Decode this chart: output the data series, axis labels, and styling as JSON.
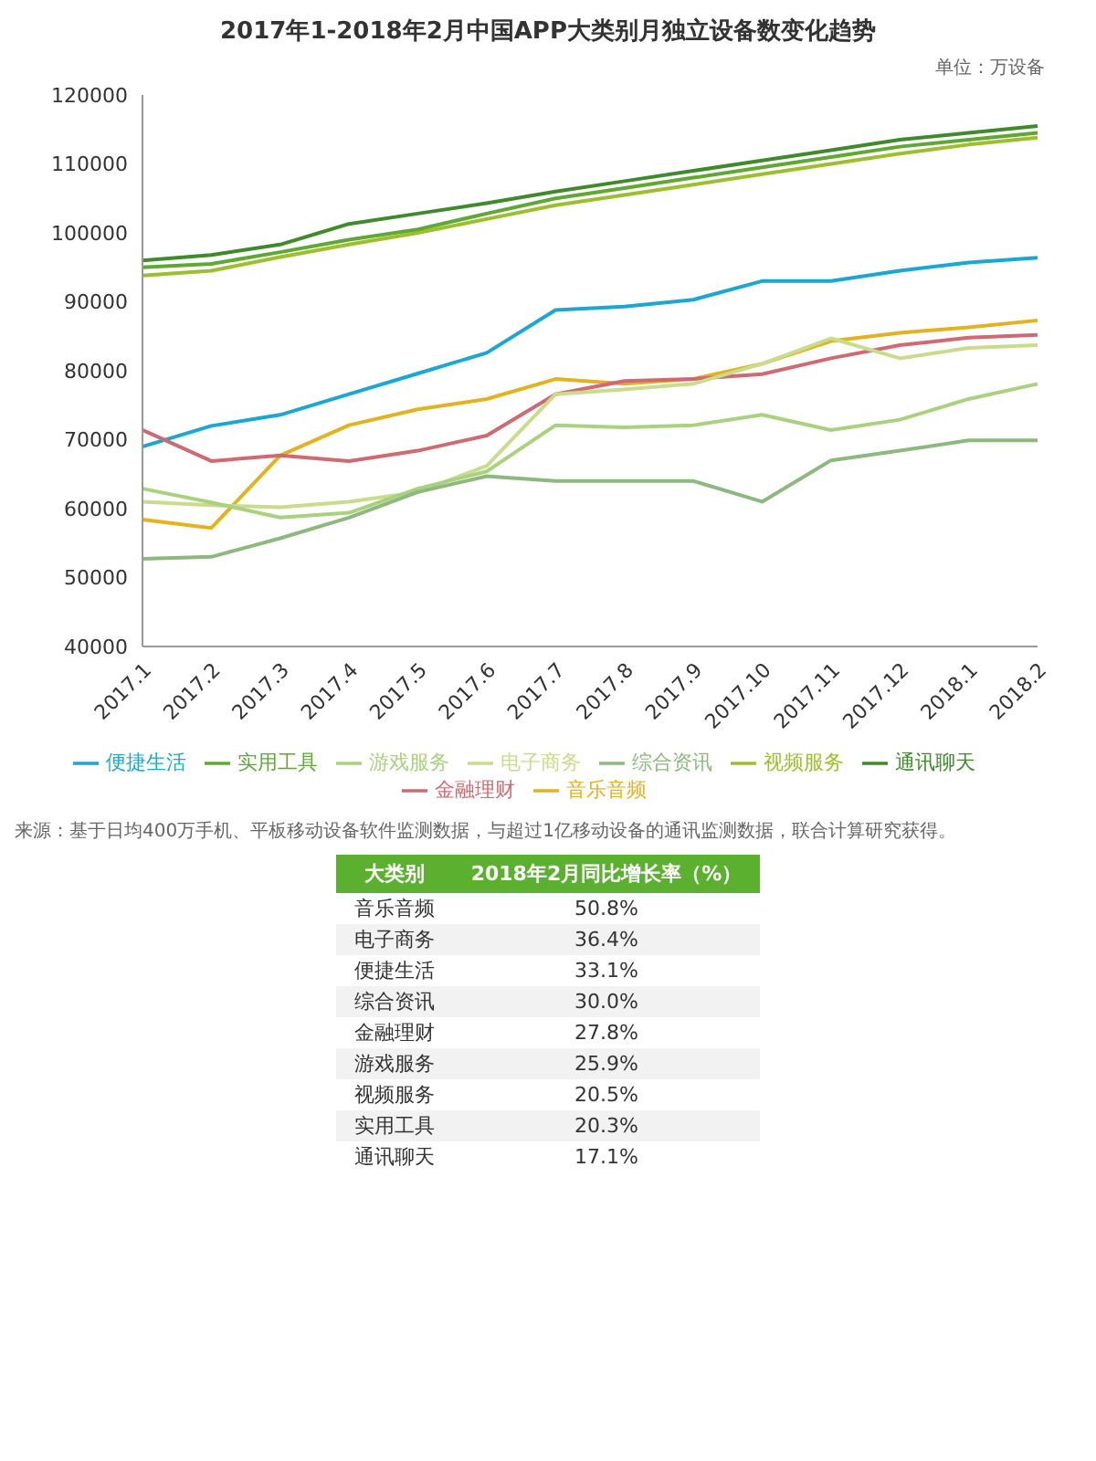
{
  "chart_data": [
    {
      "type": "line",
      "title": "2017年1-2018年2月中国APP大类别月独立设备数变化趋势",
      "annotations": [
        "单位：万设备",
        "来源：基于日均400万手机、平板移动设备软件监测数据，与超过1亿移动设备的通讯监测数据，联合计算研究获得。"
      ],
      "categories": [
        "2017.1",
        "2017.2",
        "2017.3",
        "2017.4",
        "2017.5",
        "2017.6",
        "2017.7",
        "2017.8",
        "2017.9",
        "2017.10",
        "2017.11",
        "2017.12",
        "2018.1",
        "2018.2"
      ],
      "series": [
        {
          "name": "视频服务",
          "color": "#9cbf2e",
          "values": [
            93800,
            94500,
            96500,
            98300,
            100000,
            102000,
            104000,
            105500,
            107000,
            108500,
            110000,
            111500,
            112800,
            113800
          ]
        },
        {
          "name": "实用工具",
          "color": "#5fa832",
          "values": [
            95000,
            95500,
            97200,
            99000,
            100500,
            102800,
            105000,
            106500,
            108000,
            109500,
            111000,
            112500,
            113500,
            114500
          ]
        },
        {
          "name": "通讯聊天",
          "color": "#3f8a2a",
          "values": [
            96000,
            96800,
            98300,
            101300,
            102800,
            104300,
            106000,
            107500,
            109000,
            110500,
            112000,
            113500,
            114500,
            115500
          ]
        },
        {
          "name": "便捷生活",
          "color": "#1aa7d2",
          "values": [
            69000,
            72000,
            73600,
            76600,
            79600,
            82600,
            88800,
            89300,
            90300,
            93000,
            93000,
            94500,
            95700,
            96400
          ]
        },
        {
          "name": "音乐音频",
          "color": "#e2b31f",
          "values": [
            58400,
            57200,
            67700,
            72100,
            74400,
            75900,
            78800,
            78100,
            78800,
            81000,
            84300,
            85500,
            86300,
            87300
          ]
        },
        {
          "name": "金融理财",
          "color": "#cf6a72",
          "values": [
            71400,
            66900,
            67700,
            66900,
            68400,
            70600,
            76600,
            78500,
            78800,
            79500,
            81800,
            83700,
            84800,
            85200
          ]
        },
        {
          "name": "电子商务",
          "color": "#c8dc8c",
          "values": [
            61000,
            60500,
            60200,
            61000,
            62400,
            66200,
            76600,
            77300,
            78100,
            81000,
            84700,
            81800,
            83300,
            83700
          ]
        },
        {
          "name": "游戏服务",
          "color": "#a9d17e",
          "values": [
            62900,
            60900,
            58700,
            59400,
            62900,
            65400,
            72100,
            71800,
            72100,
            73600,
            71400,
            72900,
            75900,
            78100
          ]
        },
        {
          "name": "综合资讯",
          "color": "#8db87e",
          "values": [
            52700,
            53000,
            55700,
            58700,
            62400,
            64700,
            64000,
            64000,
            64000,
            61000,
            67000,
            68400,
            69900,
            69900
          ]
        }
      ],
      "ylim": [
        40000,
        120000
      ],
      "yticks": [
        40000,
        50000,
        60000,
        70000,
        80000,
        90000,
        100000,
        110000,
        120000
      ],
      "legend": "bottom",
      "marker": "none",
      "line_style": "solid"
    },
    {
      "type": "other",
      "annotations": [
        "大类别",
        "2018年2月同比增长率（%）"
      ],
      "categories": [
        "音乐音频",
        "电子商务",
        "便捷生活",
        "综合资讯",
        "金融理财",
        "游戏服务",
        "视频服务",
        "实用工具",
        "通讯聊天"
      ],
      "value_labels": [
        "50.8%",
        "36.4%",
        "33.1%",
        "30.0%",
        "27.8%",
        "25.9%",
        "20.5%",
        "20.3%",
        "17.1%"
      ]
    }
  ]
}
